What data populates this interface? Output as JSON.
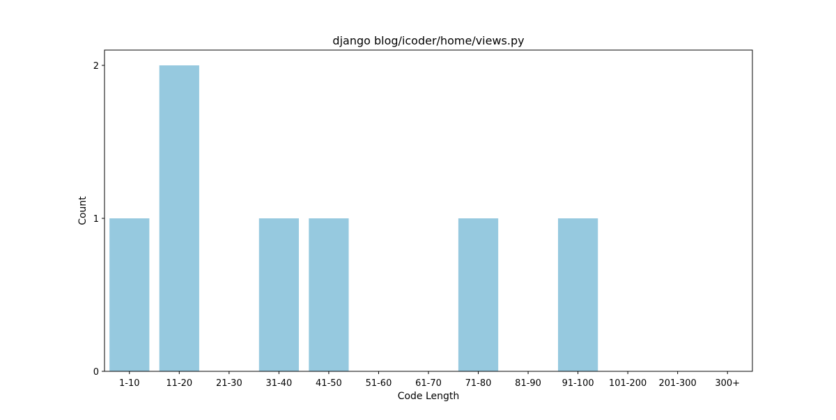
{
  "chart_data": {
    "type": "bar",
    "title": "django blog/icoder/home/views.py",
    "xlabel": "Code Length",
    "ylabel": "Count",
    "categories": [
      "1-10",
      "11-20",
      "21-30",
      "31-40",
      "41-50",
      "51-60",
      "61-70",
      "71-80",
      "81-90",
      "91-100",
      "101-200",
      "201-300",
      "300+"
    ],
    "values": [
      1,
      2,
      0,
      1,
      1,
      0,
      0,
      1,
      0,
      1,
      0,
      0,
      0
    ],
    "ylim": [
      0,
      2.1
    ],
    "yticks": [
      0,
      1,
      2
    ],
    "bar_color": "#96c9df",
    "grid": false
  }
}
